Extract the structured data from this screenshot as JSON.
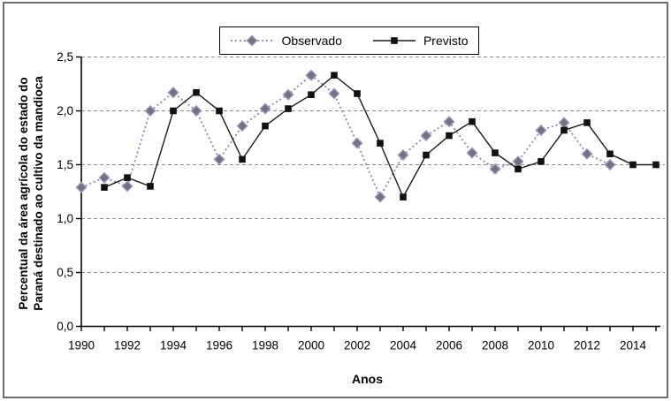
{
  "chart_data": {
    "type": "line",
    "title": "",
    "xlabel": "Anos",
    "ylabel_lines": [
      "Percentual da área agrícola do estado do",
      "Paraná destinado ao cultivo da mandioca"
    ],
    "xlim": [
      1990,
      2015
    ],
    "ylim": [
      0,
      2.5
    ],
    "grid": "horizontal dashed gray lines at each 0.5 step",
    "legend_position": "top-center boxed",
    "yticks": [
      {
        "value": 0.0,
        "label": "0,0"
      },
      {
        "value": 0.5,
        "label": "0,5"
      },
      {
        "value": 1.0,
        "label": "1,0"
      },
      {
        "value": 1.5,
        "label": "1,5"
      },
      {
        "value": 2.0,
        "label": "2,0"
      },
      {
        "value": 2.5,
        "label": "2,5"
      }
    ],
    "xticks_labeled": [
      1990,
      1992,
      1994,
      1996,
      1998,
      2000,
      2002,
      2004,
      2006,
      2008,
      2010,
      2012,
      2014
    ],
    "xticks_minor_every_year": true,
    "series": [
      {
        "name": "Observado",
        "marker": "diamond",
        "line_style": "dotted",
        "color": "#8787b0",
        "marker_fill": "#73737f",
        "marker_stroke": "#9c9cc4",
        "x": [
          1990,
          1991,
          1992,
          1993,
          1994,
          1995,
          1996,
          1997,
          1998,
          1999,
          2000,
          2001,
          2002,
          2003,
          2004,
          2005,
          2006,
          2007,
          2008,
          2009,
          2010,
          2011,
          2012,
          2013
        ],
        "y": [
          1.29,
          1.38,
          1.3,
          2.0,
          2.17,
          2.0,
          1.55,
          1.86,
          2.02,
          2.15,
          2.33,
          2.16,
          1.7,
          1.2,
          1.59,
          1.77,
          1.9,
          1.61,
          1.46,
          1.53,
          1.82,
          1.89,
          1.6,
          1.5
        ]
      },
      {
        "name": "Previsto",
        "marker": "square",
        "line_style": "solid",
        "color": "#1a1a1a",
        "marker_fill": "#111111",
        "marker_stroke": "#111111",
        "x": [
          1991,
          1992,
          1993,
          1994,
          1995,
          1996,
          1997,
          1998,
          1999,
          2000,
          2001,
          2002,
          2003,
          2004,
          2005,
          2006,
          2007,
          2008,
          2009,
          2010,
          2011,
          2012,
          2013,
          2014,
          2015
        ],
        "y": [
          1.29,
          1.38,
          1.3,
          2.0,
          2.17,
          2.0,
          1.55,
          1.86,
          2.02,
          2.15,
          2.33,
          2.16,
          1.7,
          1.2,
          1.59,
          1.77,
          1.9,
          1.61,
          1.46,
          1.53,
          1.82,
          1.89,
          1.6,
          1.5,
          1.5
        ]
      }
    ]
  }
}
